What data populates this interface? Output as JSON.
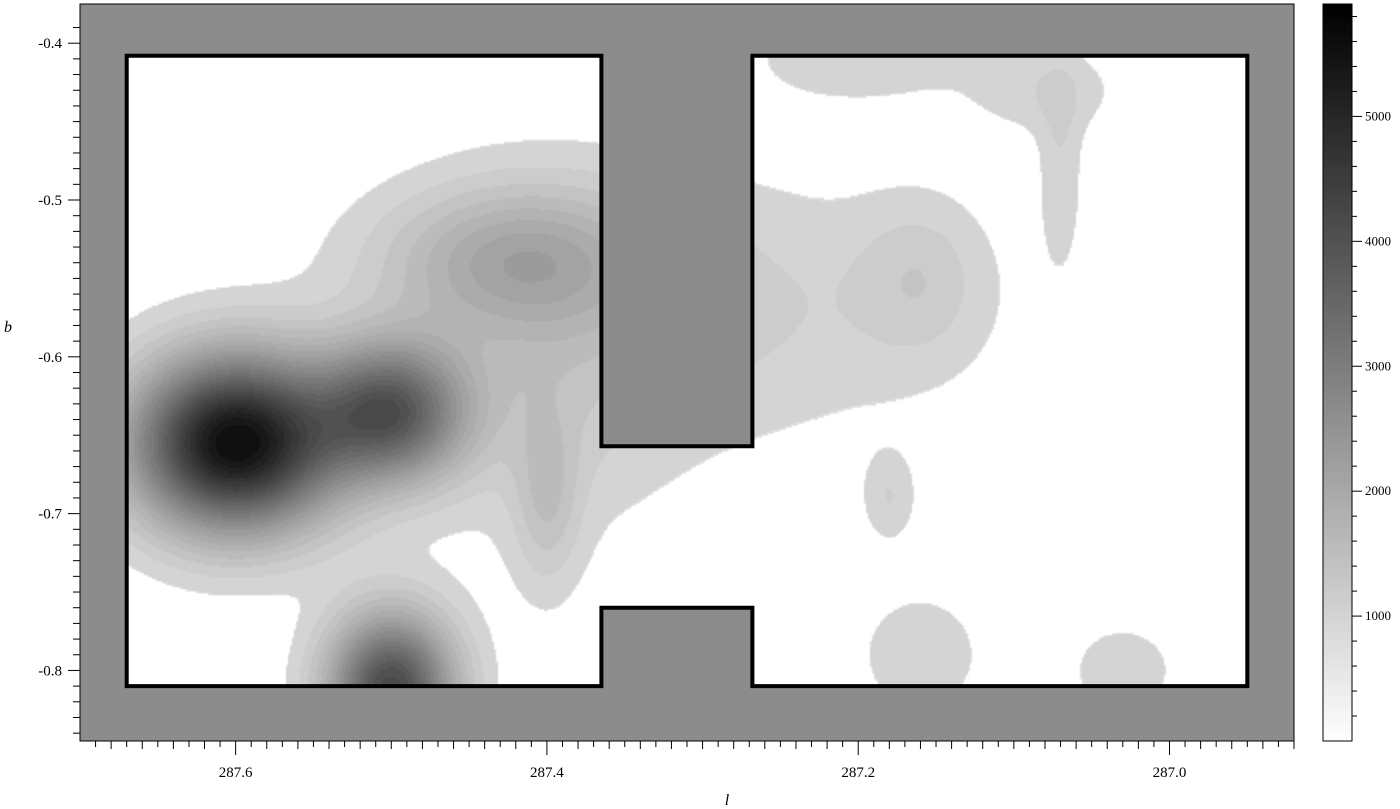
{
  "chart_data": {
    "type": "heatmap",
    "xlabel": "l",
    "ylabel": "b",
    "xlim": [
      287.7,
      286.92
    ],
    "ylim": [
      -0.845,
      -0.375
    ],
    "x_ticks": [
      {
        "value": 287.6,
        "label": "287.6"
      },
      {
        "value": 287.4,
        "label": "287.4"
      },
      {
        "value": 287.2,
        "label": "287.2"
      },
      {
        "value": 287.0,
        "label": "287.0"
      }
    ],
    "y_ticks": [
      {
        "value": -0.4,
        "label": "-0.4"
      },
      {
        "value": -0.5,
        "label": "-0.5"
      },
      {
        "value": -0.6,
        "label": "-0.6"
      },
      {
        "value": -0.7,
        "label": "-0.7"
      },
      {
        "value": -0.8,
        "label": "-0.8"
      }
    ],
    "colorbar": {
      "min": 0,
      "max": 5900,
      "ticks": [
        {
          "value": 1000,
          "label": "1000"
        },
        {
          "value": 2000,
          "label": "2000"
        },
        {
          "value": 3000,
          "label": "3000"
        },
        {
          "value": 4000,
          "label": "4000"
        },
        {
          "value": 5000,
          "label": "5000"
        }
      ]
    },
    "mask_color": "#8c8c8c",
    "survey_outline": [
      [
        287.67,
        -0.408
      ],
      [
        287.365,
        -0.408
      ],
      [
        287.365,
        -0.657
      ],
      [
        287.268,
        -0.657
      ],
      [
        287.268,
        -0.408
      ],
      [
        286.95,
        -0.408
      ],
      [
        286.95,
        -0.81
      ],
      [
        287.268,
        -0.81
      ],
      [
        287.268,
        -0.76
      ],
      [
        287.365,
        -0.76
      ],
      [
        287.365,
        -0.81
      ],
      [
        287.67,
        -0.81
      ]
    ],
    "sources": [
      {
        "l": 287.6,
        "b": -0.655,
        "peak": 5900,
        "sl": 0.045,
        "sb": 0.038
      },
      {
        "l": 287.5,
        "b": -0.635,
        "peak": 3600,
        "sl": 0.033,
        "sb": 0.03
      },
      {
        "l": 287.5,
        "b": -0.812,
        "peak": 4200,
        "sl": 0.028,
        "sb": 0.033
      },
      {
        "l": 287.42,
        "b": -0.538,
        "peak": 1300,
        "sl": 0.06,
        "sb": 0.032
      },
      {
        "l": 287.4,
        "b": -0.69,
        "peak": 700,
        "sl": 0.015,
        "sb": 0.04
      },
      {
        "l": 287.3,
        "b": -0.57,
        "peak": 500,
        "sl": 0.12,
        "sb": 0.06
      },
      {
        "l": 287.16,
        "b": -0.55,
        "peak": 450,
        "sl": 0.028,
        "sb": 0.035
      },
      {
        "l": 287.18,
        "b": -0.69,
        "peak": 420,
        "sl": 0.012,
        "sb": 0.02
      },
      {
        "l": 287.2,
        "b": -0.41,
        "peak": 400,
        "sl": 0.05,
        "sb": 0.02
      },
      {
        "l": 287.07,
        "b": -0.48,
        "peak": 380,
        "sl": 0.01,
        "sb": 0.045
      },
      {
        "l": 287.08,
        "b": -0.43,
        "peak": 380,
        "sl": 0.035,
        "sb": 0.02
      },
      {
        "l": 287.16,
        "b": -0.79,
        "peak": 400,
        "sl": 0.03,
        "sb": 0.03
      },
      {
        "l": 287.03,
        "b": -0.8,
        "peak": 400,
        "sl": 0.025,
        "sb": 0.022
      },
      {
        "l": 287.4,
        "b": -0.61,
        "peak": 450,
        "sl": 0.06,
        "sb": 0.08
      }
    ]
  }
}
